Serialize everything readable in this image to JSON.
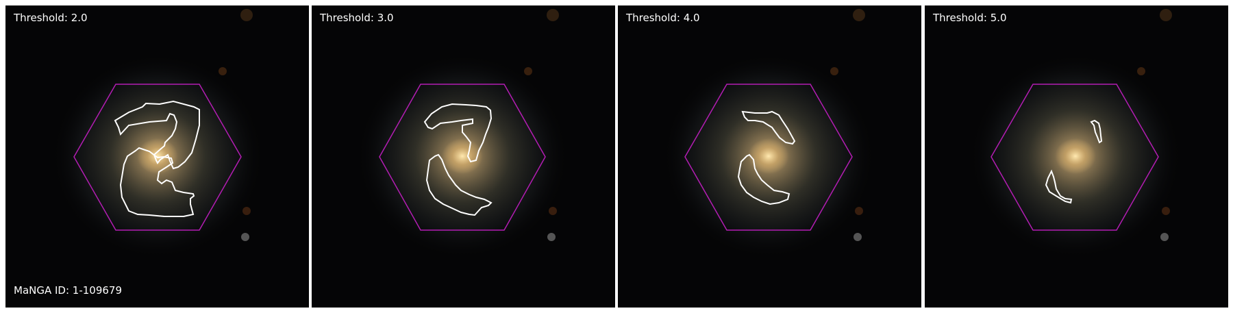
{
  "figure": {
    "manga_id_label": "MaNGA ID: 1-109679",
    "hexagon_color": "#b31db3",
    "contour_color": "#ffffff",
    "panels": [
      {
        "threshold_label": "Threshold: 2.0"
      },
      {
        "threshold_label": "Threshold: 3.0"
      },
      {
        "threshold_label": "Threshold: 4.0"
      },
      {
        "threshold_label": "Threshold: 5.0"
      }
    ]
  }
}
